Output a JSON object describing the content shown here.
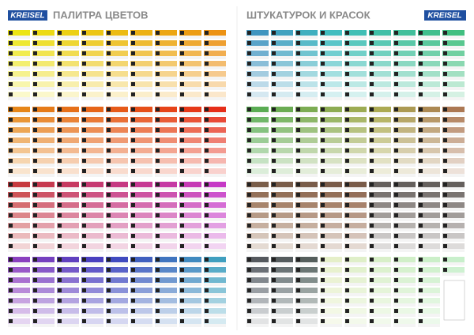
{
  "header": {
    "logo_left": "KREISEL",
    "title_left": "ПАЛИТРА ЦВЕТОВ",
    "title_right": "ШТУКАТУРОК И КРАСОК",
    "logo_right": "KREISEL"
  }
}
